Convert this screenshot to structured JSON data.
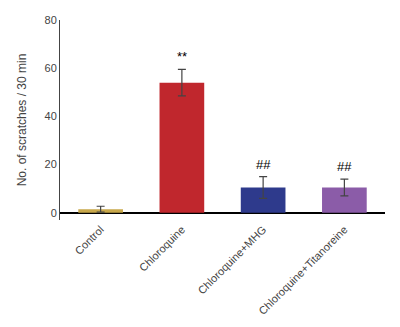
{
  "chart_data": {
    "type": "bar",
    "categories": [
      "Control",
      "Chloroquine",
      "Chloroquine+MHG",
      "Chloroquine+Titanoreine"
    ],
    "values": [
      1.5,
      54.0,
      10.5,
      10.5
    ],
    "errors": [
      1.2,
      5.5,
      4.5,
      3.5
    ],
    "colors": [
      "#C8A84B",
      "#C0272D",
      "#2E3A8C",
      "#8B5CA8"
    ],
    "annotations": [
      null,
      "**",
      "##",
      "##"
    ],
    "ylabel": "No. of scratches / 30 min",
    "ylim": [
      -3,
      80
    ],
    "yticks": [
      0,
      20,
      40,
      60,
      80
    ],
    "grid": false
  }
}
